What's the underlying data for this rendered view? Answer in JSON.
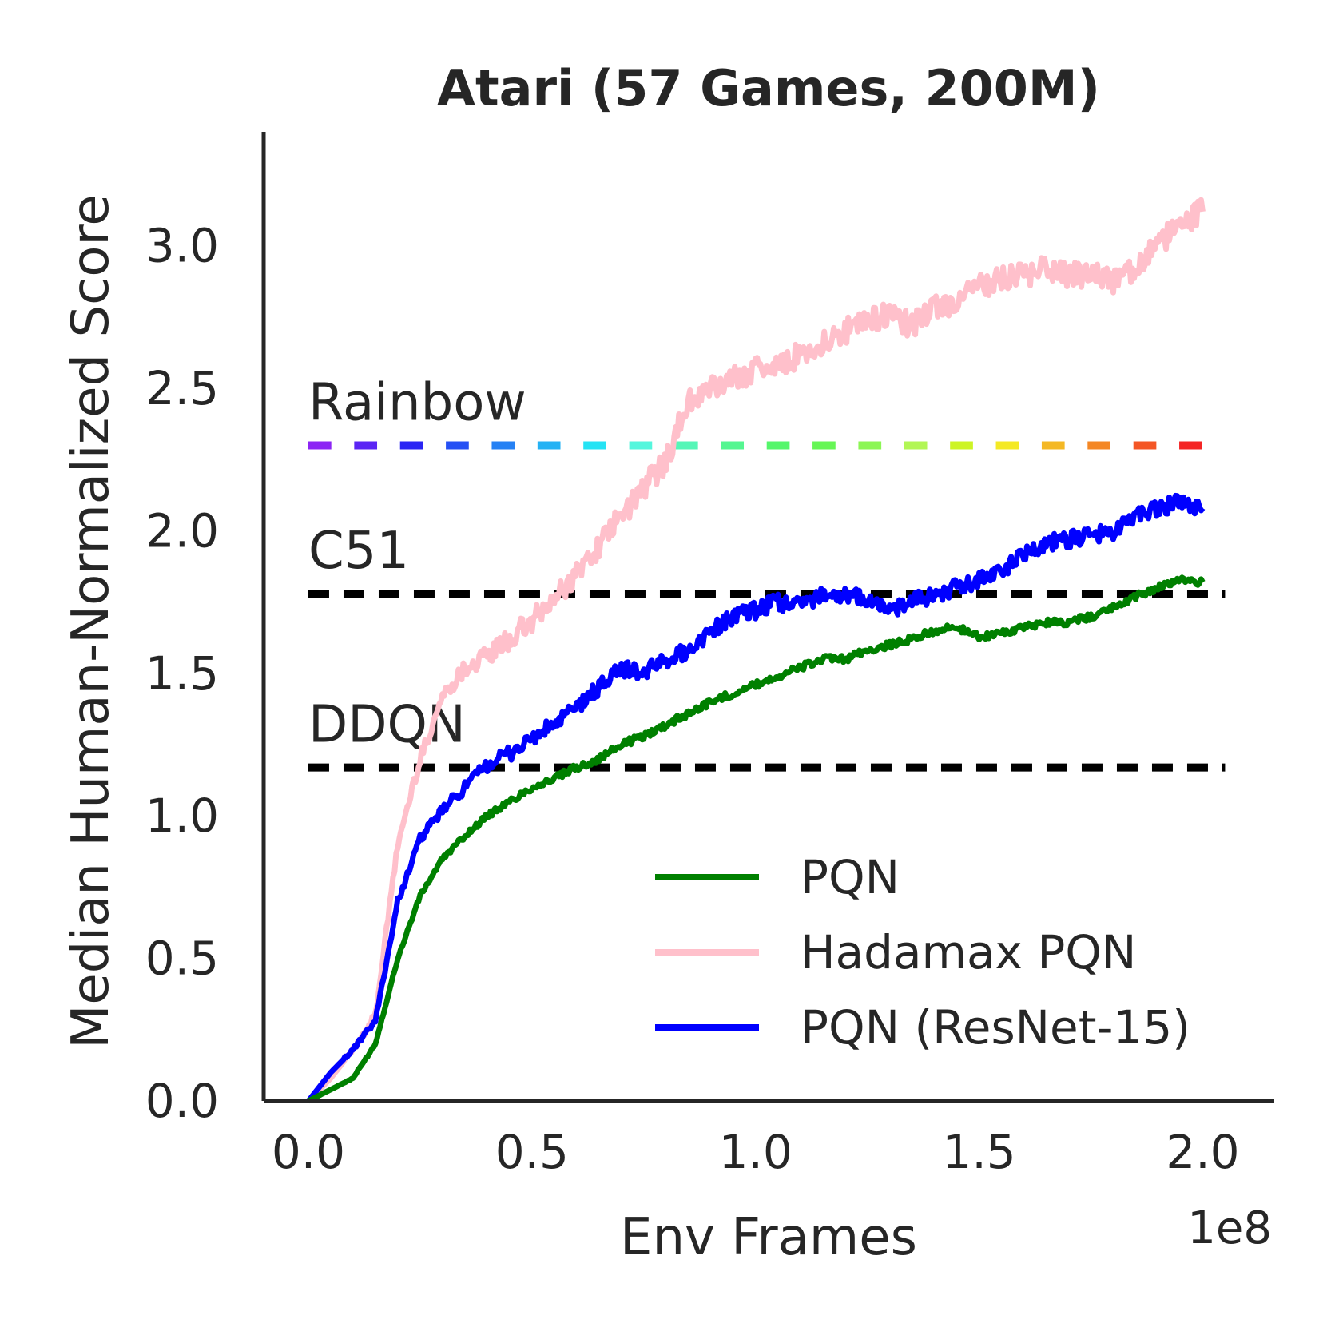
{
  "chart_data": {
    "type": "line",
    "title": "Atari (57 Games, 200M)",
    "xlabel": "Env Frames",
    "ylabel": "Median Human-Normalized Score",
    "x_offset_label": "1e8",
    "xlim": [
      -0.1,
      2.16
    ],
    "ylim": [
      0.0,
      3.4
    ],
    "x_ticks": [
      0.0,
      0.5,
      1.0,
      1.5,
      2.0
    ],
    "x_tick_labels": [
      "0.0",
      "0.5",
      "1.0",
      "1.5",
      "2.0"
    ],
    "y_ticks": [
      0.0,
      0.5,
      1.0,
      1.5,
      2.0,
      2.5,
      3.0
    ],
    "y_tick_labels": [
      "0.0",
      "0.5",
      "1.0",
      "1.5",
      "2.0",
      "2.5",
      "3.0"
    ],
    "grid": false,
    "legend_position": "lower-right",
    "reference_lines": [
      {
        "name": "Rainbow",
        "value": 2.3,
        "style": "rainbow-dashed"
      },
      {
        "name": "C51",
        "value": 1.78,
        "style": "black-dashed"
      },
      {
        "name": "DDQN",
        "value": 1.17,
        "style": "black-dashed"
      }
    ],
    "series": [
      {
        "name": "PQN",
        "color": "#008000",
        "x": [
          0.0,
          0.05,
          0.1,
          0.15,
          0.2,
          0.25,
          0.3,
          0.35,
          0.4,
          0.45,
          0.5,
          0.55,
          0.6,
          0.65,
          0.7,
          0.75,
          0.8,
          0.85,
          0.9,
          0.95,
          1.0,
          1.05,
          1.1,
          1.15,
          1.2,
          1.25,
          1.3,
          1.35,
          1.4,
          1.45,
          1.5,
          1.55,
          1.6,
          1.65,
          1.7,
          1.75,
          1.8,
          1.85,
          1.9,
          1.95,
          2.0
        ],
        "values": [
          0.0,
          0.04,
          0.08,
          0.2,
          0.5,
          0.72,
          0.85,
          0.93,
          1.0,
          1.05,
          1.1,
          1.13,
          1.17,
          1.2,
          1.25,
          1.28,
          1.32,
          1.36,
          1.4,
          1.43,
          1.46,
          1.49,
          1.52,
          1.55,
          1.55,
          1.58,
          1.6,
          1.62,
          1.65,
          1.66,
          1.63,
          1.64,
          1.66,
          1.68,
          1.68,
          1.7,
          1.73,
          1.77,
          1.8,
          1.83,
          1.82
        ]
      },
      {
        "name": "Hadamax PQN",
        "color": "#ffc0cb",
        "x": [
          0.0,
          0.05,
          0.1,
          0.15,
          0.2,
          0.25,
          0.3,
          0.35,
          0.4,
          0.45,
          0.5,
          0.55,
          0.6,
          0.65,
          0.7,
          0.75,
          0.8,
          0.85,
          0.9,
          0.95,
          1.0,
          1.05,
          1.1,
          1.15,
          1.2,
          1.25,
          1.3,
          1.35,
          1.4,
          1.45,
          1.5,
          1.55,
          1.6,
          1.65,
          1.7,
          1.75,
          1.8,
          1.85,
          1.9,
          1.95,
          2.0
        ],
        "values": [
          0.0,
          0.08,
          0.18,
          0.3,
          0.9,
          1.2,
          1.42,
          1.52,
          1.56,
          1.62,
          1.68,
          1.76,
          1.85,
          1.95,
          2.05,
          2.15,
          2.25,
          2.45,
          2.5,
          2.53,
          2.57,
          2.58,
          2.62,
          2.66,
          2.7,
          2.74,
          2.76,
          2.72,
          2.78,
          2.8,
          2.86,
          2.88,
          2.9,
          2.92,
          2.9,
          2.9,
          2.88,
          2.92,
          3.0,
          3.08,
          3.12
        ]
      },
      {
        "name": "PQN (ResNet-15)",
        "color": "#0000ff",
        "x": [
          0.0,
          0.05,
          0.1,
          0.15,
          0.2,
          0.25,
          0.3,
          0.35,
          0.4,
          0.45,
          0.5,
          0.55,
          0.6,
          0.65,
          0.7,
          0.75,
          0.8,
          0.85,
          0.9,
          0.95,
          1.0,
          1.05,
          1.1,
          1.15,
          1.2,
          1.25,
          1.3,
          1.35,
          1.4,
          1.45,
          1.5,
          1.55,
          1.6,
          1.65,
          1.7,
          1.75,
          1.8,
          1.85,
          1.9,
          1.95,
          2.0
        ],
        "values": [
          0.0,
          0.1,
          0.18,
          0.28,
          0.7,
          0.92,
          1.02,
          1.1,
          1.18,
          1.22,
          1.27,
          1.32,
          1.38,
          1.45,
          1.52,
          1.5,
          1.55,
          1.58,
          1.65,
          1.7,
          1.72,
          1.75,
          1.74,
          1.78,
          1.77,
          1.76,
          1.72,
          1.75,
          1.78,
          1.8,
          1.83,
          1.86,
          1.92,
          1.96,
          1.97,
          1.98,
          2.0,
          2.05,
          2.08,
          2.1,
          2.08
        ]
      }
    ]
  }
}
